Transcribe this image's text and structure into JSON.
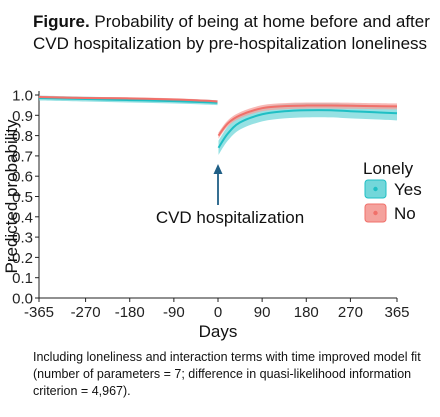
{
  "figure": {
    "title_bold": "Figure.",
    "title_rest": " Probability of being at home before and after CVD hospitalization by pre-hospitalization loneliness",
    "note": "Including loneliness and interaction terms with time improved model fit (number of parameters = 7; difference in quasi-likelihood information criterion = 4,967)."
  },
  "chart_data": {
    "type": "line",
    "title": "Probability of being at home before and after CVD hospitalization by pre-hospitalization loneliness",
    "xlabel": "Days",
    "ylabel": "Predicted probability",
    "xlim": [
      -365,
      365
    ],
    "ylim": [
      0,
      1.0
    ],
    "xticks": [
      -365,
      -270,
      -180,
      -90,
      0,
      90,
      180,
      270,
      365
    ],
    "yticks": [
      0.0,
      0.1,
      0.2,
      0.3,
      0.4,
      0.5,
      0.6,
      0.7,
      0.8,
      0.9,
      1.0
    ],
    "ytick_labels": [
      "0.0",
      "0.1",
      "0.2",
      "0.3",
      "0.4",
      "0.5",
      "0.6",
      "0.7",
      "0.8",
      "0.9",
      "1.0"
    ],
    "grid": false,
    "legend_title": "Lonely",
    "legend_position": "right",
    "annotation": "CVD hospitalization",
    "series": [
      {
        "name": "Yes",
        "color": "#1fbfc4",
        "fill": "#73d7da",
        "pre": {
          "x": [
            -365,
            -270,
            -180,
            -90,
            -30,
            -1
          ],
          "y": [
            0.985,
            0.98,
            0.975,
            0.97,
            0.965,
            0.962
          ],
          "band": 0.012
        },
        "post": {
          "x": [
            1,
            20,
            45,
            90,
            135,
            180,
            230,
            270,
            320,
            365
          ],
          "y": [
            0.74,
            0.81,
            0.865,
            0.905,
            0.92,
            0.925,
            0.925,
            0.92,
            0.915,
            0.91
          ],
          "band": 0.035
        }
      },
      {
        "name": "No",
        "color": "#f0706a",
        "fill": "#f4a29d",
        "pre": {
          "x": [
            -365,
            -270,
            -180,
            -90,
            -30,
            -1
          ],
          "y": [
            0.99,
            0.985,
            0.983,
            0.978,
            0.972,
            0.968
          ],
          "band": 0.006
        },
        "post": {
          "x": [
            1,
            20,
            45,
            90,
            135,
            180,
            230,
            270,
            320,
            365
          ],
          "y": [
            0.8,
            0.86,
            0.9,
            0.935,
            0.945,
            0.948,
            0.948,
            0.947,
            0.945,
            0.944
          ],
          "band": 0.015
        }
      }
    ]
  }
}
